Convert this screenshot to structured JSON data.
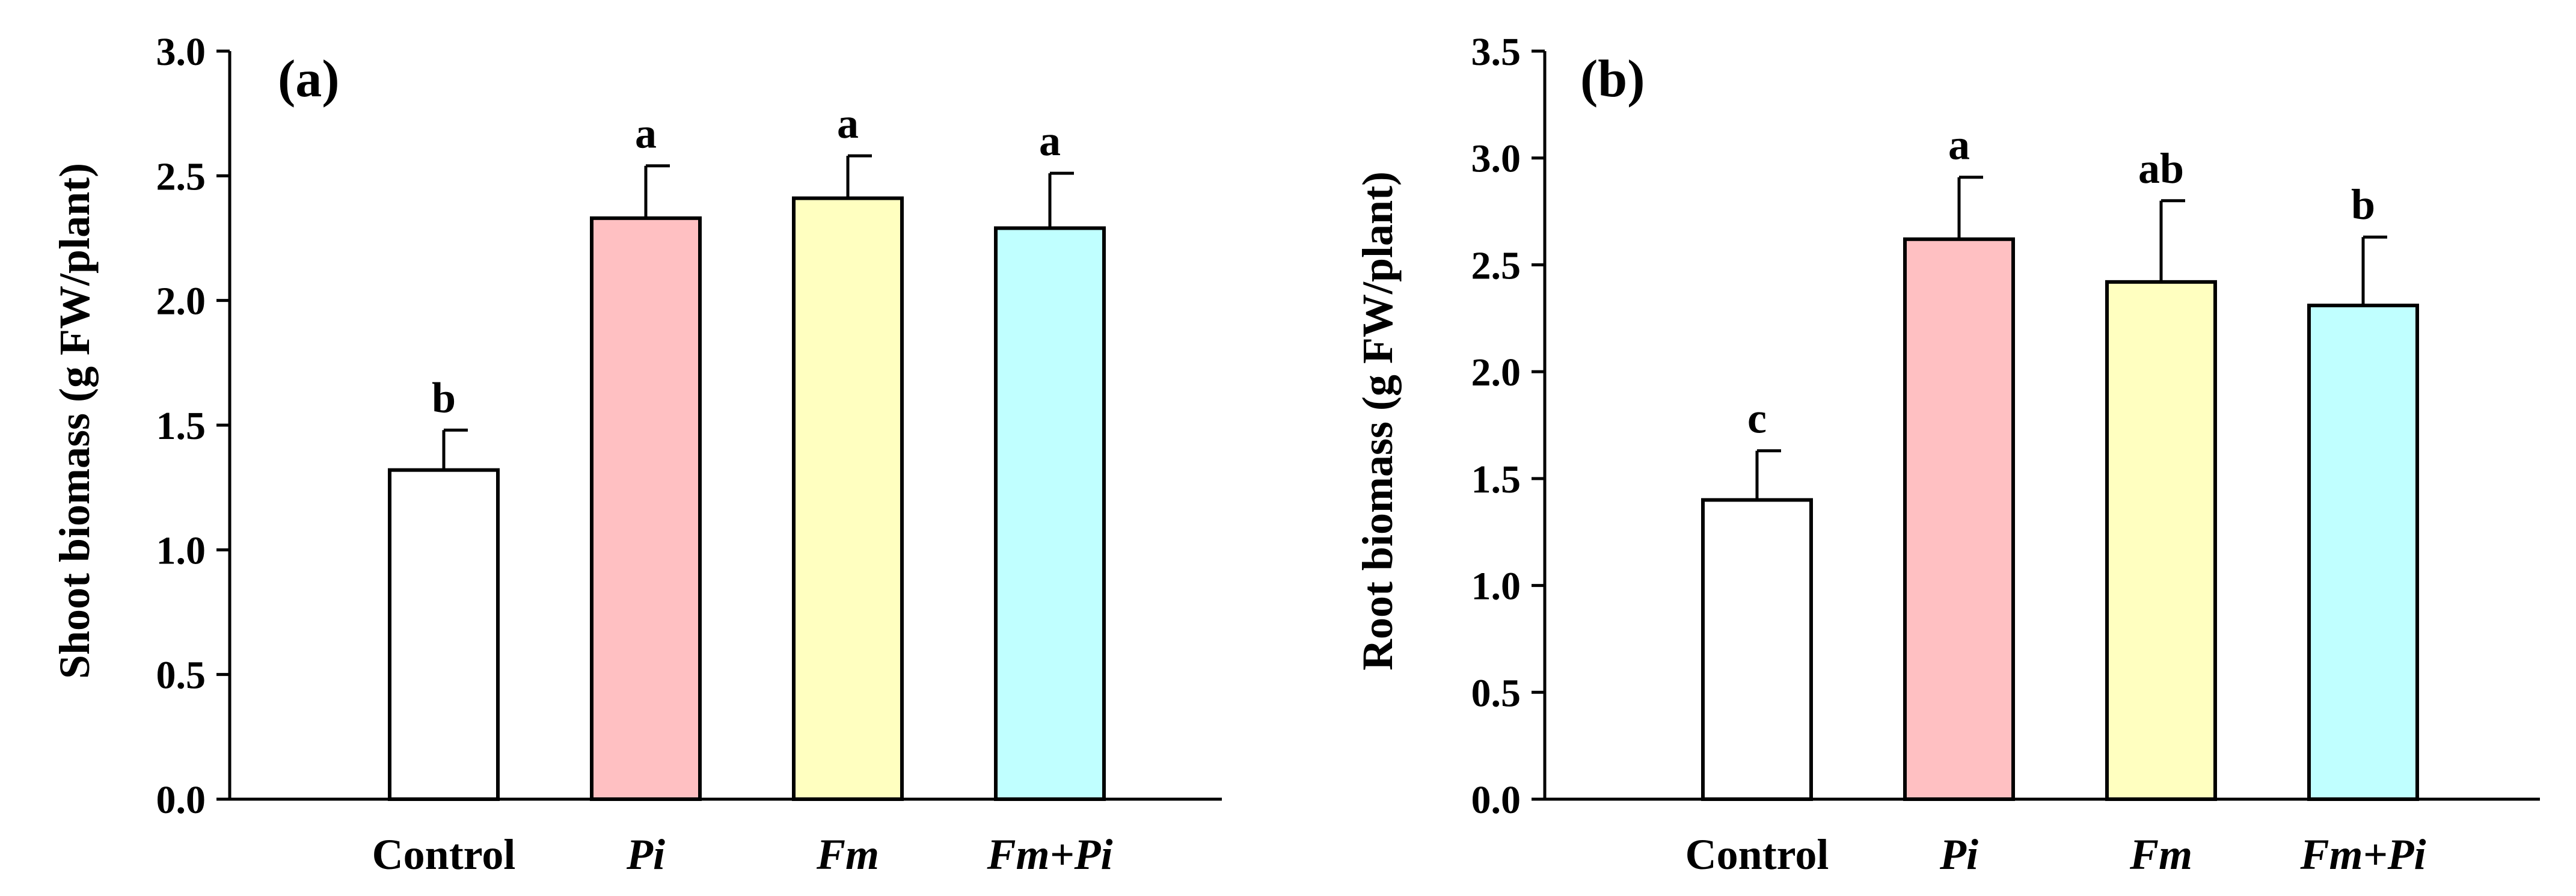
{
  "chart_data": [
    {
      "type": "bar",
      "panel_label": "(a)",
      "categories": [
        "Control",
        "Pi",
        "Fm",
        "Fm+Pi"
      ],
      "italic_categories": [
        false,
        true,
        true,
        true
      ],
      "values": [
        1.32,
        2.33,
        2.41,
        2.29
      ],
      "errors": [
        0.16,
        0.21,
        0.17,
        0.22
      ],
      "significance": [
        "b",
        "a",
        "a",
        "a"
      ],
      "colors": [
        "#ffffff",
        "#ffc0c2",
        "#ffffc0",
        "#c0ffff"
      ],
      "ylabel": "Shoot biomass (g FW/plant)",
      "xlabel": "",
      "ylim": [
        0,
        3.0
      ],
      "yticks": [
        "0.0",
        "0.5",
        "1.0",
        "1.5",
        "2.0",
        "2.5",
        "3.0"
      ],
      "grid": false
    },
    {
      "type": "bar",
      "panel_label": "(b)",
      "categories": [
        "Control",
        "Pi",
        "Fm",
        "Fm+Pi"
      ],
      "italic_categories": [
        false,
        true,
        true,
        true
      ],
      "values": [
        1.4,
        2.62,
        2.42,
        2.31
      ],
      "errors": [
        0.23,
        0.29,
        0.38,
        0.32
      ],
      "significance": [
        "c",
        "a",
        "ab",
        "b"
      ],
      "colors": [
        "#ffffff",
        "#ffc0c2",
        "#ffffc0",
        "#c0ffff"
      ],
      "ylabel": "Root biomass (g FW/plant)",
      "xlabel": "",
      "ylim": [
        0,
        3.5
      ],
      "yticks": [
        "0.0",
        "0.5",
        "1.0",
        "1.5",
        "2.0",
        "2.5",
        "3.0",
        "3.5"
      ],
      "grid": false
    }
  ]
}
